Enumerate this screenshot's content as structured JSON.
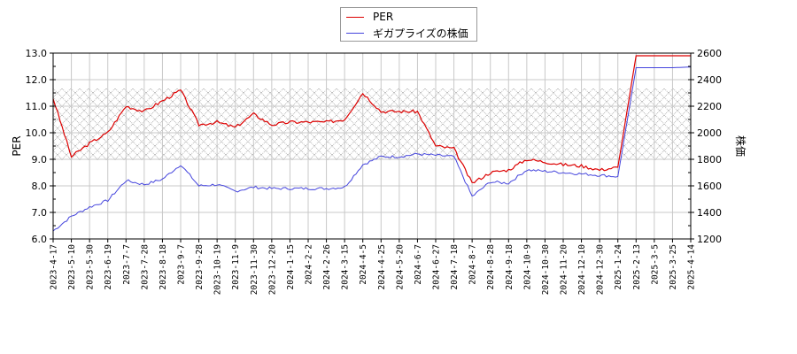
{
  "legend": {
    "items": [
      {
        "label": "PER",
        "color": "#dd0000"
      },
      {
        "label": "ギガプライズの株価",
        "color": "#4444dd"
      }
    ]
  },
  "axes": {
    "left_label": "PER",
    "right_label": "株価"
  },
  "chart_data": {
    "type": "line",
    "title": "",
    "xlabel": "",
    "ylabel": "PER",
    "ylabel_right": "株価",
    "ylim": [
      6.0,
      13.0
    ],
    "ylim_right": [
      1200,
      2600
    ],
    "yticks": [
      "6.0",
      "7.0",
      "8.0",
      "9.0",
      "10.0",
      "11.0",
      "12.0",
      "13.0"
    ],
    "yticks_right": [
      "1200",
      "1400",
      "1600",
      "1800",
      "2000",
      "2200",
      "2400",
      "2600"
    ],
    "grid": true,
    "legend_position": "top-center",
    "shaded_band": {
      "from": 8.97,
      "to": 11.67,
      "pattern": "crosshatch"
    },
    "x": [
      "2023-4-17",
      "2023-5-10",
      "2023-5-30",
      "2023-6-19",
      "2023-7-7",
      "2023-7-28",
      "2023-8-18",
      "2023-9-7",
      "2023-9-28",
      "2023-10-19",
      "2023-11-9",
      "2023-11-30",
      "2023-12-20",
      "2024-1-15",
      "2024-2-2",
      "2024-2-26",
      "2024-3-15",
      "2024-4-5",
      "2024-4-25",
      "2024-5-20",
      "2024-6-7",
      "2024-6-27",
      "2024-7-18",
      "2024-8-7",
      "2024-8-28",
      "2024-9-18",
      "2024-10-9",
      "2024-10-30",
      "2024-11-20",
      "2024-12-10",
      "2024-12-30",
      "2025-1-24",
      "2025-2-13",
      "2025-3-5",
      "2025-3-25",
      "2025-4-14"
    ],
    "series": [
      {
        "name": "PER",
        "color": "#dd0000",
        "values": [
          11.3,
          9.1,
          9.6,
          10.0,
          11.0,
          10.8,
          11.2,
          11.6,
          10.3,
          10.4,
          10.2,
          10.7,
          10.3,
          10.4,
          10.4,
          10.4,
          10.5,
          11.5,
          10.8,
          10.8,
          10.8,
          9.5,
          9.4,
          8.1,
          8.5,
          8.6,
          9.0,
          8.9,
          8.8,
          8.75,
          8.6,
          8.7,
          12.9,
          12.9,
          12.9,
          12.9
        ]
      },
      {
        "name": "ギガプライズの株価",
        "color": "#4444dd",
        "values": [
          1260,
          1370,
          1440,
          1490,
          1640,
          1610,
          1650,
          1760,
          1600,
          1610,
          1560,
          1590,
          1580,
          1580,
          1580,
          1580,
          1590,
          1760,
          1820,
          1820,
          1840,
          1830,
          1820,
          1520,
          1630,
          1620,
          1720,
          1710,
          1700,
          1690,
          1680,
          1670,
          2490,
          2490,
          2490,
          2495
        ]
      }
    ]
  }
}
